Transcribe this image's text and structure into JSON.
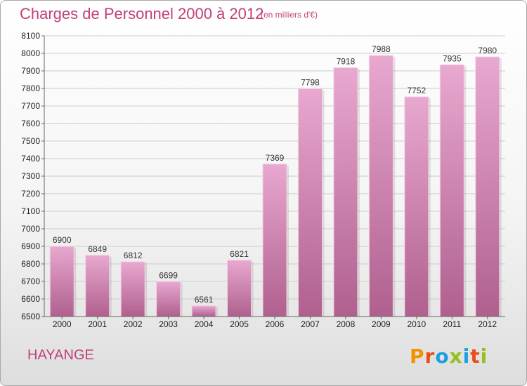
{
  "header": {
    "title": "Charges de Personnel 2000 à 2012",
    "subtitle": "(en milliers d'€)"
  },
  "footer": {
    "commune": "HAYANGE",
    "logo_text": "Proxiti"
  },
  "colors": {
    "accent": "#c0407a",
    "bar_top": "#e8a8d0",
    "bar_bottom": "#b0608e",
    "grid": "#cccccc",
    "logo_letters": [
      "#f39200",
      "#e94e1b",
      "#1aa1dc",
      "#95c11f",
      "#1aa1dc",
      "#e94e1b",
      "#95c11f"
    ]
  },
  "chart_data": {
    "type": "bar",
    "title": "Charges de Personnel 2000 à 2012",
    "subtitle": "(en milliers d'€)",
    "xlabel": "",
    "ylabel": "",
    "categories": [
      "2000",
      "2001",
      "2002",
      "2003",
      "2004",
      "2005",
      "2006",
      "2007",
      "2008",
      "2009",
      "2010",
      "2011",
      "2012"
    ],
    "values": [
      6900,
      6849,
      6812,
      6699,
      6561,
      6821,
      7369,
      7798,
      7918,
      7988,
      7752,
      7935,
      7980
    ],
    "ylim": [
      6500,
      8100
    ],
    "yticks": [
      6500,
      6600,
      6700,
      6800,
      6900,
      7000,
      7100,
      7200,
      7300,
      7400,
      7500,
      7600,
      7700,
      7800,
      7900,
      8000,
      8100
    ],
    "grid": true,
    "data_labels": true
  }
}
